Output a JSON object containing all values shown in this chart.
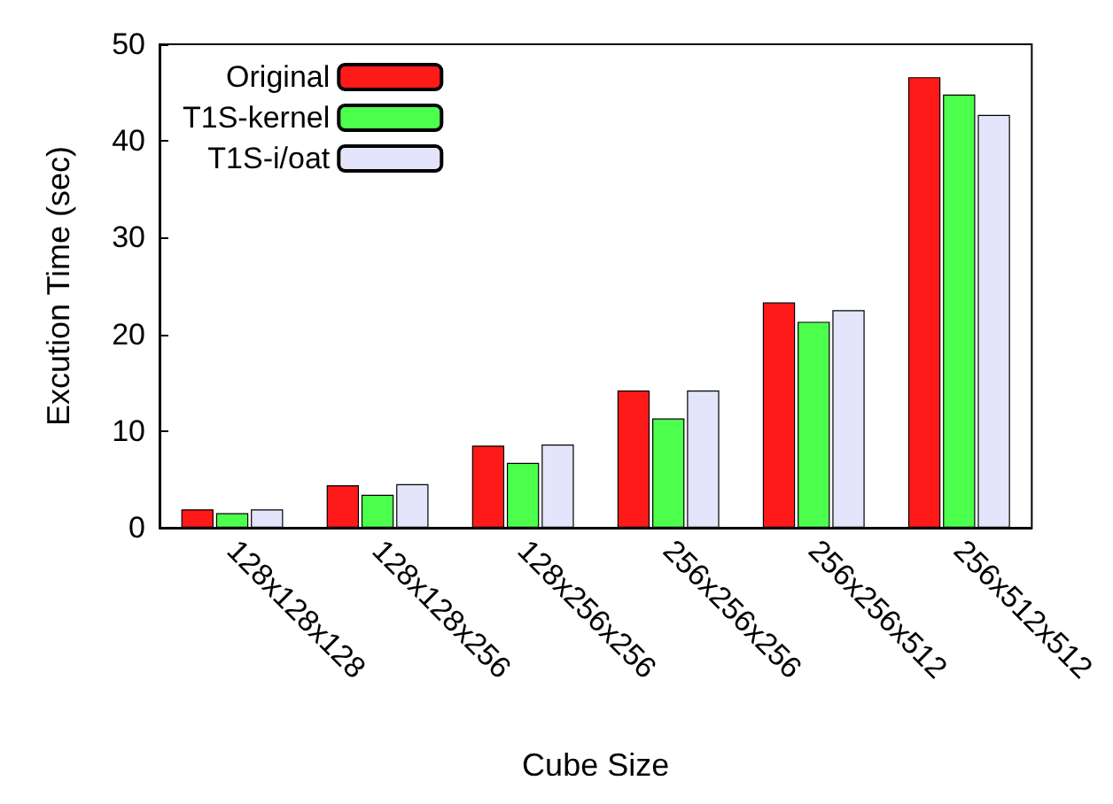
{
  "chart_data": {
    "type": "bar",
    "xlabel": "Cube Size",
    "ylabel": "Excution Time (sec)",
    "categories": [
      "128x128x128",
      "128x128x256",
      "128x256x256",
      "256x256x256",
      "256x256x512",
      "256x512x512"
    ],
    "series": [
      {
        "name": "Original",
        "color": "#ff1a1a",
        "values": [
          1.9,
          4.4,
          8.5,
          14.2,
          23.3,
          46.6
        ]
      },
      {
        "name": "T1S-kernel",
        "color": "#4dff4d",
        "values": [
          1.5,
          3.4,
          6.7,
          11.3,
          21.3,
          44.8
        ]
      },
      {
        "name": "T1S-i/oat",
        "color": "#e4e4fb",
        "values": [
          1.9,
          4.5,
          8.6,
          14.2,
          22.5,
          42.7
        ]
      }
    ],
    "ylim": [
      0,
      50
    ],
    "yticks": [
      0,
      10,
      20,
      30,
      40,
      50
    ],
    "grid": false,
    "legend": "top left"
  }
}
